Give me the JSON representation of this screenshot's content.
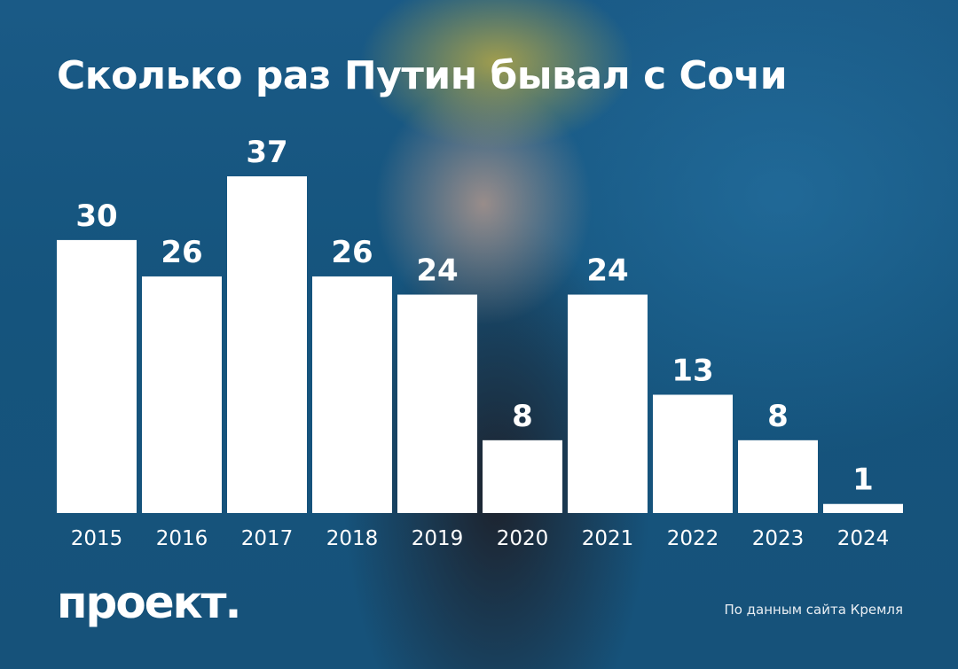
{
  "title": "Сколько раз Путин бывал с Сочи",
  "logo_text": "проект.",
  "source_text": "По данным сайта Кремля",
  "colors": {
    "background": "#17567f",
    "bar": "#ffffff",
    "text": "#ffffff"
  },
  "chart_data": {
    "type": "bar",
    "title": "Сколько раз Путин бывал с Сочи",
    "xlabel": "",
    "ylabel": "",
    "categories": [
      "2015",
      "2016",
      "2017",
      "2018",
      "2019",
      "2020",
      "2021",
      "2022",
      "2023",
      "2024"
    ],
    "values": [
      30,
      26,
      37,
      26,
      24,
      8,
      24,
      13,
      8,
      1
    ],
    "ylim": [
      0,
      37
    ],
    "grid": false,
    "legend": "none",
    "data_labels": true
  }
}
